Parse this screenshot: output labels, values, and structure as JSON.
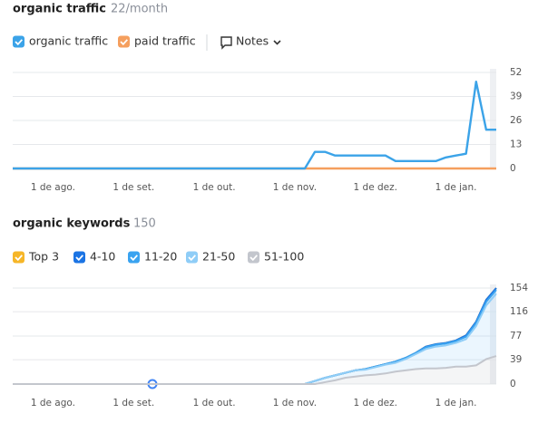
{
  "chart_data": [
    {
      "type": "line",
      "title": "organic traffic",
      "subtitle": "22/month",
      "notes": "Notes",
      "categories": [
        null,
        null,
        null,
        null,
        "1 de ago.",
        null,
        null,
        null,
        null,
        null,
        null,
        null,
        "1 de set.",
        null,
        null,
        null,
        null,
        null,
        null,
        null,
        "1 de out.",
        null,
        null,
        null,
        null,
        null,
        null,
        null,
        "1 de nov.",
        null,
        null,
        null,
        null,
        null,
        null,
        null,
        "1 de dez.",
        null,
        null,
        null,
        null,
        null,
        null,
        null,
        "1 de jan.",
        null,
        null,
        null,
        null
      ],
      "series": [
        {
          "name": "organic traffic",
          "color": "#3ba3e8",
          "values": [
            0,
            0,
            0,
            0,
            0,
            0,
            0,
            0,
            0,
            0,
            0,
            0,
            0,
            0,
            0,
            0,
            0,
            0,
            0,
            0,
            0,
            0,
            0,
            0,
            0,
            0,
            0,
            0,
            0,
            0,
            9,
            9,
            7,
            7,
            7,
            7,
            7,
            7,
            4,
            4,
            4,
            4,
            4,
            6,
            7,
            8,
            47,
            21,
            21
          ]
        },
        {
          "name": "paid traffic",
          "color": "#f59f5e",
          "values": [
            0,
            0,
            0,
            0,
            0,
            0,
            0,
            0,
            0,
            0,
            0,
            0,
            0,
            0,
            0,
            0,
            0,
            0,
            0,
            0,
            0,
            0,
            0,
            0,
            0,
            0,
            0,
            0,
            0,
            0,
            0,
            0,
            0,
            0,
            0,
            0,
            0,
            0,
            0,
            0,
            0,
            0,
            0,
            0,
            0,
            0,
            0,
            0,
            0
          ]
        }
      ],
      "ylim": [
        0,
        52
      ],
      "yticks": [
        0,
        13,
        26,
        39,
        52
      ],
      "grid": true
    },
    {
      "type": "stacked-area",
      "title": "organic keywords",
      "subtitle": 150,
      "categories": [
        null,
        null,
        null,
        null,
        "1 de ago.",
        null,
        null,
        null,
        null,
        null,
        null,
        null,
        "1 de set.",
        null,
        null,
        null,
        null,
        null,
        null,
        null,
        "1 de out.",
        null,
        null,
        null,
        null,
        null,
        null,
        null,
        "1 de nov.",
        null,
        null,
        null,
        null,
        null,
        null,
        null,
        "1 de dez.",
        null,
        null,
        null,
        null,
        null,
        null,
        null,
        "1 de jan.",
        null,
        null,
        null,
        null
      ],
      "series": [
        {
          "name": "Top 3",
          "color": "#f6b628",
          "values": [
            0,
            0,
            0,
            0,
            0,
            0,
            0,
            0,
            0,
            0,
            0,
            0,
            0,
            0,
            0,
            0,
            0,
            0,
            0,
            0,
            0,
            0,
            0,
            0,
            0,
            0,
            0,
            0,
            0,
            0,
            0,
            0,
            0,
            0,
            0,
            0,
            0,
            0,
            0,
            0,
            0,
            0,
            0,
            0,
            0,
            0,
            0,
            0,
            0
          ]
        },
        {
          "name": "4-10",
          "color": "#1b74e4",
          "values": [
            0,
            0,
            0,
            0,
            0,
            0,
            0,
            0,
            0,
            0,
            0,
            0,
            0,
            0,
            0,
            0,
            0,
            0,
            0,
            0,
            0,
            0,
            0,
            0,
            0,
            0,
            0,
            0,
            0,
            0,
            0,
            0,
            0,
            0,
            0,
            0,
            0,
            0,
            0,
            0,
            0,
            1,
            1,
            1,
            1,
            2,
            2,
            3,
            3
          ]
        },
        {
          "name": "11-20",
          "color": "#3aa3f0",
          "values": [
            0,
            0,
            0,
            0,
            0,
            0,
            0,
            0,
            0,
            0,
            0,
            0,
            0,
            0,
            0,
            0,
            0,
            0,
            0,
            0,
            0,
            0,
            0,
            0,
            0,
            0,
            0,
            0,
            0,
            0,
            0,
            0,
            0,
            0,
            0,
            1,
            1,
            1,
            2,
            2,
            2,
            3,
            3,
            3,
            3,
            4,
            5,
            6,
            6
          ]
        },
        {
          "name": "21-50",
          "color": "#8fcdf7",
          "values": [
            0,
            0,
            0,
            0,
            0,
            0,
            0,
            0,
            0,
            0,
            0,
            0,
            0,
            0,
            0,
            0,
            0,
            0,
            0,
            0,
            0,
            0,
            0,
            0,
            0,
            0,
            0,
            0,
            0,
            0,
            5,
            7,
            8,
            8,
            10,
            9,
            12,
            14,
            14,
            18,
            24,
            31,
            35,
            36,
            38,
            44,
            63,
            86,
            100
          ]
        },
        {
          "name": "51-100",
          "color": "#c3c6cd",
          "values": [
            0,
            0,
            0,
            0,
            0,
            0,
            0,
            0,
            0,
            0,
            0,
            0,
            0,
            0,
            0,
            0,
            0,
            0,
            0,
            0,
            0,
            0,
            0,
            0,
            0,
            0,
            0,
            0,
            0,
            0,
            0,
            3,
            6,
            10,
            12,
            14,
            15,
            17,
            20,
            22,
            24,
            25,
            25,
            26,
            28,
            28,
            30,
            40,
            45
          ]
        }
      ],
      "ylim": [
        0,
        154
      ],
      "yticks": [
        0,
        39,
        77,
        116,
        154
      ],
      "grid": true
    }
  ]
}
